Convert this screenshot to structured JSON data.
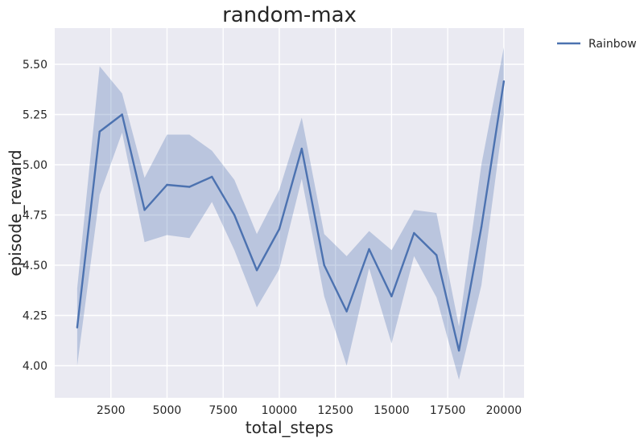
{
  "chart_data": {
    "type": "line",
    "title": "random-max",
    "xlabel": "total_steps",
    "ylabel": "episode_reward",
    "xlim": [
      0,
      20900
    ],
    "ylim": [
      3.84,
      5.68
    ],
    "x_ticks": [
      2500,
      5000,
      7500,
      10000,
      12500,
      15000,
      17500,
      20000
    ],
    "x_tick_labels": [
      "2500",
      "5000",
      "7500",
      "10000",
      "12500",
      "15000",
      "17500",
      "20000"
    ],
    "y_ticks": [
      4.0,
      4.25,
      4.5,
      4.75,
      5.0,
      5.25,
      5.5
    ],
    "y_tick_labels": [
      "4.00",
      "4.25",
      "4.50",
      "4.75",
      "5.00",
      "5.25",
      "5.50"
    ],
    "grid": true,
    "legend": {
      "placement": "outside-top-right"
    },
    "series": [
      {
        "name": "Rainbow",
        "color": "#4c72b0",
        "band_color": "#4c72b0",
        "x": [
          1000,
          2000,
          3000,
          4000,
          5000,
          6000,
          7000,
          8000,
          9000,
          10000,
          11000,
          12000,
          13000,
          14000,
          15000,
          16000,
          17000,
          18000,
          19000,
          20000
        ],
        "y": [
          4.19,
          5.165,
          5.25,
          4.775,
          4.9,
          4.89,
          4.94,
          4.75,
          4.475,
          4.68,
          5.08,
          4.5,
          4.27,
          4.58,
          4.345,
          4.66,
          4.55,
          4.075,
          4.69,
          5.415
        ],
        "y_lower": [
          4.0,
          4.85,
          5.16,
          4.615,
          4.65,
          4.635,
          4.815,
          4.575,
          4.29,
          4.48,
          4.93,
          4.345,
          4.0,
          4.485,
          4.11,
          4.545,
          4.34,
          3.93,
          4.4,
          5.25
        ],
        "y_upper": [
          4.385,
          5.49,
          5.355,
          4.935,
          5.15,
          5.15,
          5.07,
          4.925,
          4.655,
          4.875,
          5.235,
          4.655,
          4.545,
          4.67,
          4.575,
          4.775,
          4.76,
          4.195,
          5.0,
          5.585
        ]
      }
    ]
  }
}
